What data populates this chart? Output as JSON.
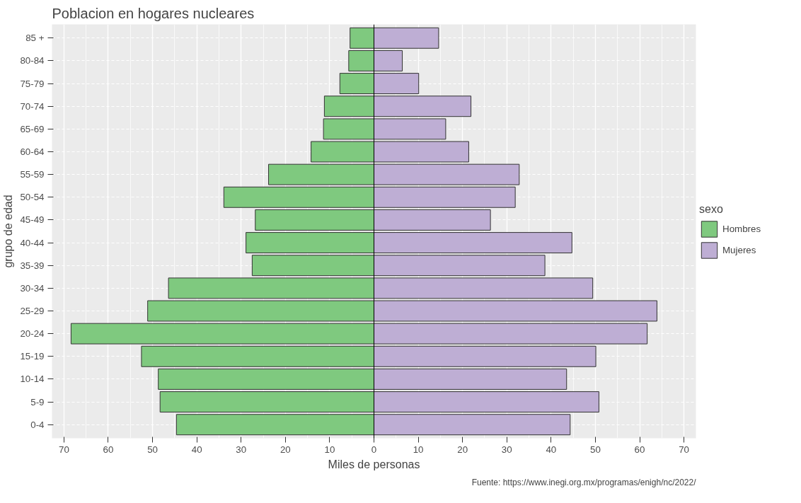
{
  "chart_data": {
    "type": "bar",
    "orientation": "horizontal",
    "stacked": true,
    "title": "Poblacion en hogares nucleares",
    "xlabel": "Miles de personas",
    "ylabel": "grupo de edad",
    "legend_title": "sexo",
    "legend": "right",
    "grid": true,
    "categories": [
      "85 +",
      "80-84",
      "75-79",
      "70-74",
      "65-69",
      "60-64",
      "55-59",
      "50-54",
      "45-49",
      "40-44",
      "35-39",
      "30-34",
      "25-29",
      "20-24",
      "15-19",
      "10-14",
      "5-9",
      "0-4"
    ],
    "series": [
      {
        "name": "Hombres",
        "color": "#7fc97f",
        "values": [
          -5.4,
          -5.7,
          -7.7,
          -11.2,
          -11.4,
          -14.2,
          -23.8,
          -33.9,
          -26.8,
          -28.9,
          -27.5,
          -46.4,
          -51.1,
          -68.4,
          -52.5,
          -48.7,
          -48.3,
          -44.6
        ]
      },
      {
        "name": "Mujeres",
        "color": "#beaed4",
        "values": [
          14.6,
          6.4,
          10.1,
          21.9,
          16.2,
          21.4,
          32.8,
          31.9,
          26.3,
          44.7,
          38.6,
          49.4,
          63.9,
          61.7,
          50.1,
          43.5,
          50.8,
          44.3
        ]
      }
    ],
    "xlim": [
      -72.7,
      72.7
    ],
    "xticks": [
      {
        "value": -70,
        "label": "70"
      },
      {
        "value": -60,
        "label": "60"
      },
      {
        "value": -50,
        "label": "50"
      },
      {
        "value": -40,
        "label": "40"
      },
      {
        "value": -30,
        "label": "30"
      },
      {
        "value": -20,
        "label": "20"
      },
      {
        "value": -10,
        "label": "10"
      },
      0,
      10,
      20,
      30,
      40,
      50,
      60,
      70
    ],
    "ref_lines": [
      {
        "axis": "x",
        "value": 0,
        "color": "#000000"
      }
    ],
    "annotations": [
      "Fuente: https://www.inegi.org.mx/programas/enigh/nc/2022/"
    ]
  }
}
